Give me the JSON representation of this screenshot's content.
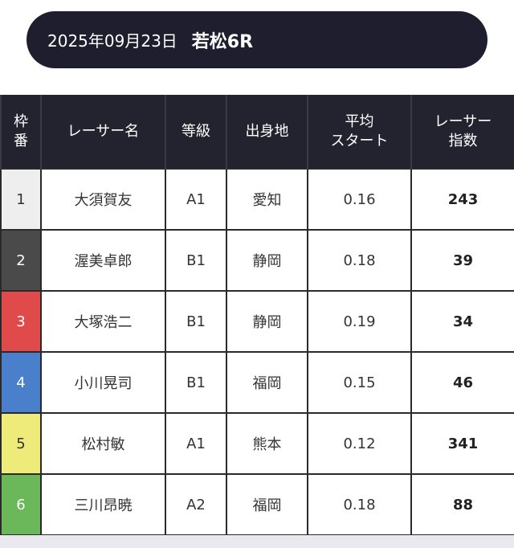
{
  "header": {
    "date": "2025年09月23日",
    "race": "若松6R"
  },
  "table": {
    "headers": {
      "waku": [
        "枠",
        "番"
      ],
      "name": "レーサー名",
      "grade": "等級",
      "hometown": "出身地",
      "avg_start": [
        "平均",
        "スタート"
      ],
      "score": [
        "レーサー",
        "指数"
      ]
    },
    "rows": [
      {
        "waku": "1",
        "name": "大須賀友",
        "grade": "A1",
        "hometown": "愛知",
        "avg_start": "0.16",
        "score": "243"
      },
      {
        "waku": "2",
        "name": "渥美卓郎",
        "grade": "B1",
        "hometown": "静岡",
        "avg_start": "0.18",
        "score": "39"
      },
      {
        "waku": "3",
        "name": "大塚浩二",
        "grade": "B1",
        "hometown": "静岡",
        "avg_start": "0.19",
        "score": "34"
      },
      {
        "waku": "4",
        "name": "小川晃司",
        "grade": "B1",
        "hometown": "福岡",
        "avg_start": "0.15",
        "score": "46"
      },
      {
        "waku": "5",
        "name": "松村敏",
        "grade": "A1",
        "hometown": "熊本",
        "avg_start": "0.12",
        "score": "341"
      },
      {
        "waku": "6",
        "name": "三川昂暁",
        "grade": "A2",
        "hometown": "福岡",
        "avg_start": "0.18",
        "score": "88"
      }
    ]
  },
  "colors": {
    "header_bg": "#1f1e2f",
    "waku_1": "#eeeeee",
    "waku_2": "#4a4a4a",
    "waku_3": "#e04a4a",
    "waku_4": "#4a7fcc",
    "waku_5": "#efeb7a",
    "waku_6": "#6bb85a"
  }
}
